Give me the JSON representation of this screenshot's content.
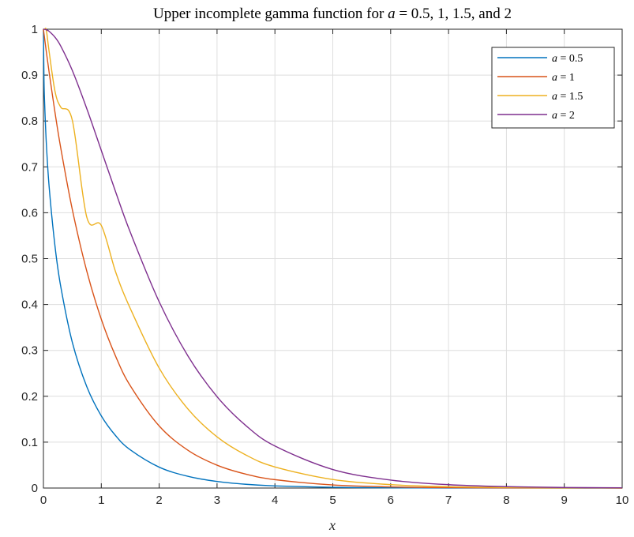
{
  "chart_data": {
    "type": "line",
    "title": "Upper incomplete gamma function for a = 0.5, 1, 1.5, and 2",
    "xlabel": "x",
    "ylabel": "",
    "xlim": [
      0,
      10
    ],
    "ylim": [
      0,
      1
    ],
    "x_ticks": [
      "0",
      "1",
      "2",
      "3",
      "4",
      "5",
      "6",
      "7",
      "8",
      "9",
      "10"
    ],
    "y_ticks": [
      "0",
      "0.1",
      "0.2",
      "0.3",
      "0.4",
      "0.5",
      "0.6",
      "0.7",
      "0.8",
      "0.9",
      "1"
    ],
    "grid": true,
    "legend_position": "top-right",
    "x": [
      0,
      0.01,
      0.02,
      0.05,
      0.1,
      0.2,
      0.3,
      0.5,
      0.75,
      1,
      1.25,
      1.5,
      2,
      2.5,
      3,
      3.5,
      4,
      5,
      6,
      7,
      8,
      9,
      10
    ],
    "series": [
      {
        "name": "a = 0.5",
        "color": "#0072BD",
        "values": [
          1.0,
          0.8875,
          0.8415,
          0.7518,
          0.6547,
          0.5271,
          0.4386,
          0.3173,
          0.2207,
          0.1573,
          0.1138,
          0.0833,
          0.0455,
          0.0254,
          0.0143,
          0.0082,
          0.0047,
          0.0016,
          0.0005,
          0.0002,
          0.0001,
          0.0,
          0.0
        ]
      },
      {
        "name": "a = 1",
        "color": "#D95319",
        "values": [
          1.0,
          0.99,
          0.9802,
          0.9512,
          0.9048,
          0.8187,
          0.7408,
          0.6065,
          0.4724,
          0.3679,
          0.2865,
          0.2231,
          0.1353,
          0.0821,
          0.0498,
          0.0302,
          0.0183,
          0.0067,
          0.0025,
          0.0009,
          0.0003,
          0.0001,
          0.0
        ]
      },
      {
        "name": "a = 1.5",
        "color": "#EDB120",
        "values": [
          1.0,
          0.9999,
          0.9996,
          0.9982,
          0.9498,
          0.8647,
          0.83,
          0.8012,
          0.59,
          0.5724,
          0.4701,
          0.3916,
          0.2615,
          0.1718,
          0.1116,
          0.0719,
          0.046,
          0.0186,
          0.0074,
          0.0029,
          0.0011,
          0.0004,
          0.0002
        ]
      },
      {
        "name": "a = 2",
        "color": "#7E2F8E",
        "values": [
          1.0,
          1.0,
          0.9998,
          0.9988,
          0.9953,
          0.9825,
          0.9631,
          0.9098,
          0.8266,
          0.7358,
          0.6446,
          0.5578,
          0.406,
          0.2873,
          0.1991,
          0.1359,
          0.0916,
          0.0404,
          0.0174,
          0.0073,
          0.003,
          0.0012,
          0.0005
        ]
      }
    ]
  }
}
